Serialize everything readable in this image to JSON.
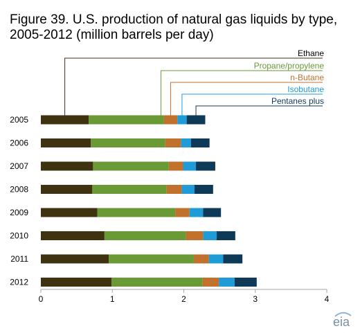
{
  "chart_data": {
    "type": "bar",
    "orientation": "horizontal",
    "stacked": true,
    "title": "Figure 39. U.S. production of natural gas liquids by type, 2005-2012 (million barrels per day)",
    "categories": [
      "2005",
      "2006",
      "2007",
      "2008",
      "2009",
      "2010",
      "2011",
      "2012"
    ],
    "series": [
      {
        "name": "Ethane",
        "color": "#3f3211",
        "values": [
          0.67,
          0.7,
          0.73,
          0.72,
          0.79,
          0.89,
          0.95,
          0.99
        ]
      },
      {
        "name": "Propane/propylene",
        "color": "#6a9a35",
        "values": [
          1.05,
          1.04,
          1.06,
          1.04,
          1.09,
          1.14,
          1.19,
          1.27
        ]
      },
      {
        "name": "n-Butane",
        "color": "#c0712b",
        "values": [
          0.19,
          0.22,
          0.2,
          0.21,
          0.2,
          0.24,
          0.21,
          0.23
        ]
      },
      {
        "name": "Isobutane",
        "color": "#1f9bd8",
        "values": [
          0.13,
          0.14,
          0.18,
          0.18,
          0.19,
          0.19,
          0.2,
          0.22
        ]
      },
      {
        "name": "Pentanes plus",
        "color": "#0e3a57",
        "values": [
          0.26,
          0.26,
          0.27,
          0.26,
          0.25,
          0.26,
          0.27,
          0.31
        ]
      }
    ],
    "xlim": [
      0,
      4
    ],
    "xticks": [
      0,
      1,
      2,
      3,
      4
    ],
    "grid": false,
    "legend": "callout labels above the 2005 bar"
  },
  "branding": {
    "logo_text": "eia",
    "logo_icon": "eia-logo-icon"
  }
}
